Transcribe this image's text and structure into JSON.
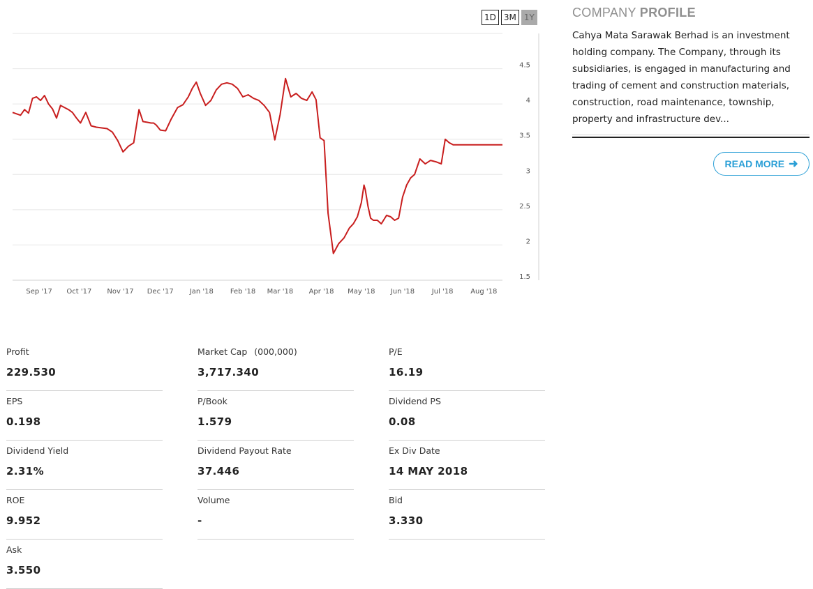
{
  "range": {
    "buttons": [
      {
        "label": "1D",
        "active": false
      },
      {
        "label": "3M",
        "active": false
      },
      {
        "label": "1Y",
        "active": true
      }
    ]
  },
  "chart_data": {
    "type": "line",
    "title": "",
    "xlabel": "",
    "ylabel": "",
    "ylim": [
      1.5,
      5
    ],
    "y_ticks": [
      "1.5",
      "2",
      "2.5",
      "3",
      "3.5",
      "4",
      "4.5"
    ],
    "x_ticks": [
      "Sep '17",
      "Oct '17",
      "Nov '17",
      "Dec '17",
      "Jan '18",
      "Feb '18",
      "Mar '18",
      "Apr '18",
      "May '18",
      "Jun '18",
      "Jul '18",
      "Aug '18"
    ],
    "x_range": [
      "2017-08-24",
      "2018-08-27"
    ],
    "grid": true,
    "color": "#c81e1e",
    "series": [
      {
        "name": "",
        "x": [
          "2017-08-24",
          "2017-08-27",
          "2017-08-30",
          "2017-09-02",
          "2017-09-05",
          "2017-09-08",
          "2017-09-11",
          "2017-09-14",
          "2017-09-17",
          "2017-09-20",
          "2017-09-23",
          "2017-09-26",
          "2017-09-29",
          "2017-10-02",
          "2017-10-05",
          "2017-10-08",
          "2017-10-11",
          "2017-10-14",
          "2017-10-18",
          "2017-10-22",
          "2017-10-26",
          "2017-10-30",
          "2017-11-03",
          "2017-11-07",
          "2017-11-11",
          "2017-11-15",
          "2017-11-19",
          "2017-11-23",
          "2017-11-27",
          "2017-11-30",
          "2017-12-03",
          "2017-12-06",
          "2017-12-08",
          "2017-12-10",
          "2017-12-13",
          "2017-12-17",
          "2017-12-21",
          "2017-12-26",
          "2017-12-30",
          "2018-01-03",
          "2018-01-06",
          "2018-01-09",
          "2018-01-12",
          "2018-01-16",
          "2018-01-20",
          "2018-01-24",
          "2018-01-28",
          "2018-02-01",
          "2018-02-05",
          "2018-02-09",
          "2018-02-13",
          "2018-02-17",
          "2018-02-21",
          "2018-02-25",
          "2018-03-01",
          "2018-03-05",
          "2018-03-09",
          "2018-03-13",
          "2018-03-17",
          "2018-03-21",
          "2018-03-25",
          "2018-03-29",
          "2018-04-02",
          "2018-04-06",
          "2018-04-09",
          "2018-04-12",
          "2018-04-15",
          "2018-04-18",
          "2018-04-22",
          "2018-04-26",
          "2018-04-30",
          "2018-05-04",
          "2018-05-07",
          "2018-05-10",
          "2018-05-13",
          "2018-05-15",
          "2018-05-16",
          "2018-05-18",
          "2018-05-20",
          "2018-05-22",
          "2018-05-25",
          "2018-05-28",
          "2018-06-01",
          "2018-06-04",
          "2018-06-07",
          "2018-06-10",
          "2018-06-13",
          "2018-06-16",
          "2018-06-19",
          "2018-06-22",
          "2018-06-26",
          "2018-06-30",
          "2018-07-04",
          "2018-07-08",
          "2018-07-12",
          "2018-07-15",
          "2018-07-18",
          "2018-07-21",
          "2018-07-24",
          "2018-07-27",
          "2018-07-30",
          "2018-08-02",
          "2018-08-05",
          "2018-08-08",
          "2018-08-11",
          "2018-08-14",
          "2018-08-17",
          "2018-08-20",
          "2018-08-23",
          "2018-08-27"
        ],
        "values": [
          3.88,
          3.86,
          3.84,
          3.92,
          3.87,
          4.08,
          4.1,
          4.05,
          4.12,
          4.0,
          3.93,
          3.8,
          3.98,
          3.95,
          3.92,
          3.88,
          3.8,
          3.73,
          3.88,
          3.69,
          3.67,
          3.66,
          3.65,
          3.6,
          3.48,
          3.32,
          3.4,
          3.45,
          3.92,
          3.75,
          3.74,
          3.73,
          3.73,
          3.7,
          3.63,
          3.62,
          3.78,
          3.95,
          3.99,
          4.1,
          4.22,
          4.31,
          4.15,
          3.98,
          4.05,
          4.2,
          4.28,
          4.3,
          4.28,
          4.22,
          4.1,
          4.13,
          4.08,
          4.05,
          3.98,
          3.88,
          3.49,
          3.85,
          4.36,
          4.1,
          4.15,
          4.08,
          4.05,
          4.17,
          4.06,
          3.52,
          3.48,
          2.45,
          1.88,
          2.02,
          2.1,
          2.24,
          2.3,
          2.4,
          2.6,
          2.85,
          2.78,
          2.55,
          2.38,
          2.35,
          2.35,
          2.3,
          2.42,
          2.4,
          2.35,
          2.38,
          2.68,
          2.85,
          2.95,
          3.0,
          3.22,
          3.15,
          3.2,
          3.18,
          3.15,
          3.5,
          3.45,
          3.42,
          3.42,
          3.42,
          3.42,
          3.42,
          3.42,
          3.42,
          3.42,
          3.42,
          3.42,
          3.42,
          3.42,
          3.42
        ]
      }
    ]
  },
  "profile": {
    "title_light": "COMPANY",
    "title_bold": "PROFILE",
    "text": "Cahya Mata Sarawak Berhad is an investment holding company. The Company, through its subsidiaries, is engaged in manufacturing and trading of cement and construction materials, construction, road maintenance, township, property and infrastructure dev...",
    "read_more_label": "READ MORE",
    "accent": "#2a9fd6"
  },
  "stats": [
    {
      "label": "Profit",
      "value": "229.530"
    },
    {
      "label": "Market Cap",
      "unit": "(000,000)",
      "value": "3,717.340"
    },
    {
      "label": "P/E",
      "value": "16.19"
    },
    {
      "label": "EPS",
      "value": "0.198"
    },
    {
      "label": "P/Book",
      "value": "1.579"
    },
    {
      "label": "Dividend PS",
      "value": "0.08"
    },
    {
      "label": "Dividend Yield",
      "value": "2.31%"
    },
    {
      "label": "Dividend Payout Rate",
      "value": "37.446"
    },
    {
      "label": "Ex Div Date",
      "value": "14 MAY 2018"
    },
    {
      "label": "ROE",
      "value": "9.952"
    },
    {
      "label": "Volume",
      "value": "-"
    },
    {
      "label": "Bid",
      "value": "3.330"
    },
    {
      "label": "Ask",
      "value": "3.550"
    }
  ]
}
